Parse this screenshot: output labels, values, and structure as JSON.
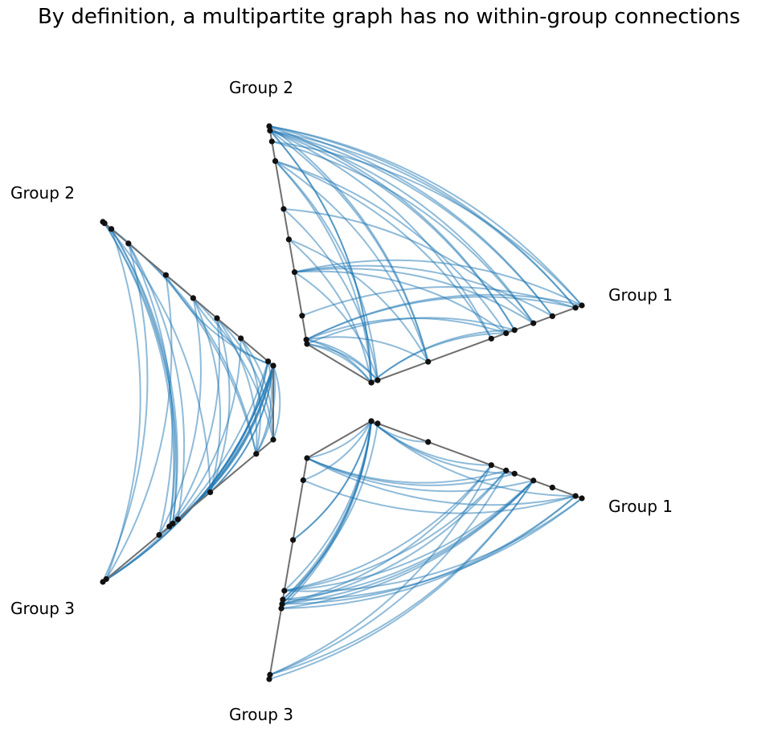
{
  "title": "By definition, a multipartite graph has no within-group connections",
  "colors": {
    "edge": "#1f77b4",
    "node": "#111111",
    "axis": "#6e6e6e"
  },
  "panels": [
    {
      "name": "right-top",
      "labels": [
        "Group 1",
        "Group 2"
      ]
    },
    {
      "name": "left",
      "labels": [
        "Group 2",
        "Group 3"
      ]
    },
    {
      "name": "right-bottom",
      "labels": [
        "Group 1",
        "Group 3"
      ]
    }
  ]
}
